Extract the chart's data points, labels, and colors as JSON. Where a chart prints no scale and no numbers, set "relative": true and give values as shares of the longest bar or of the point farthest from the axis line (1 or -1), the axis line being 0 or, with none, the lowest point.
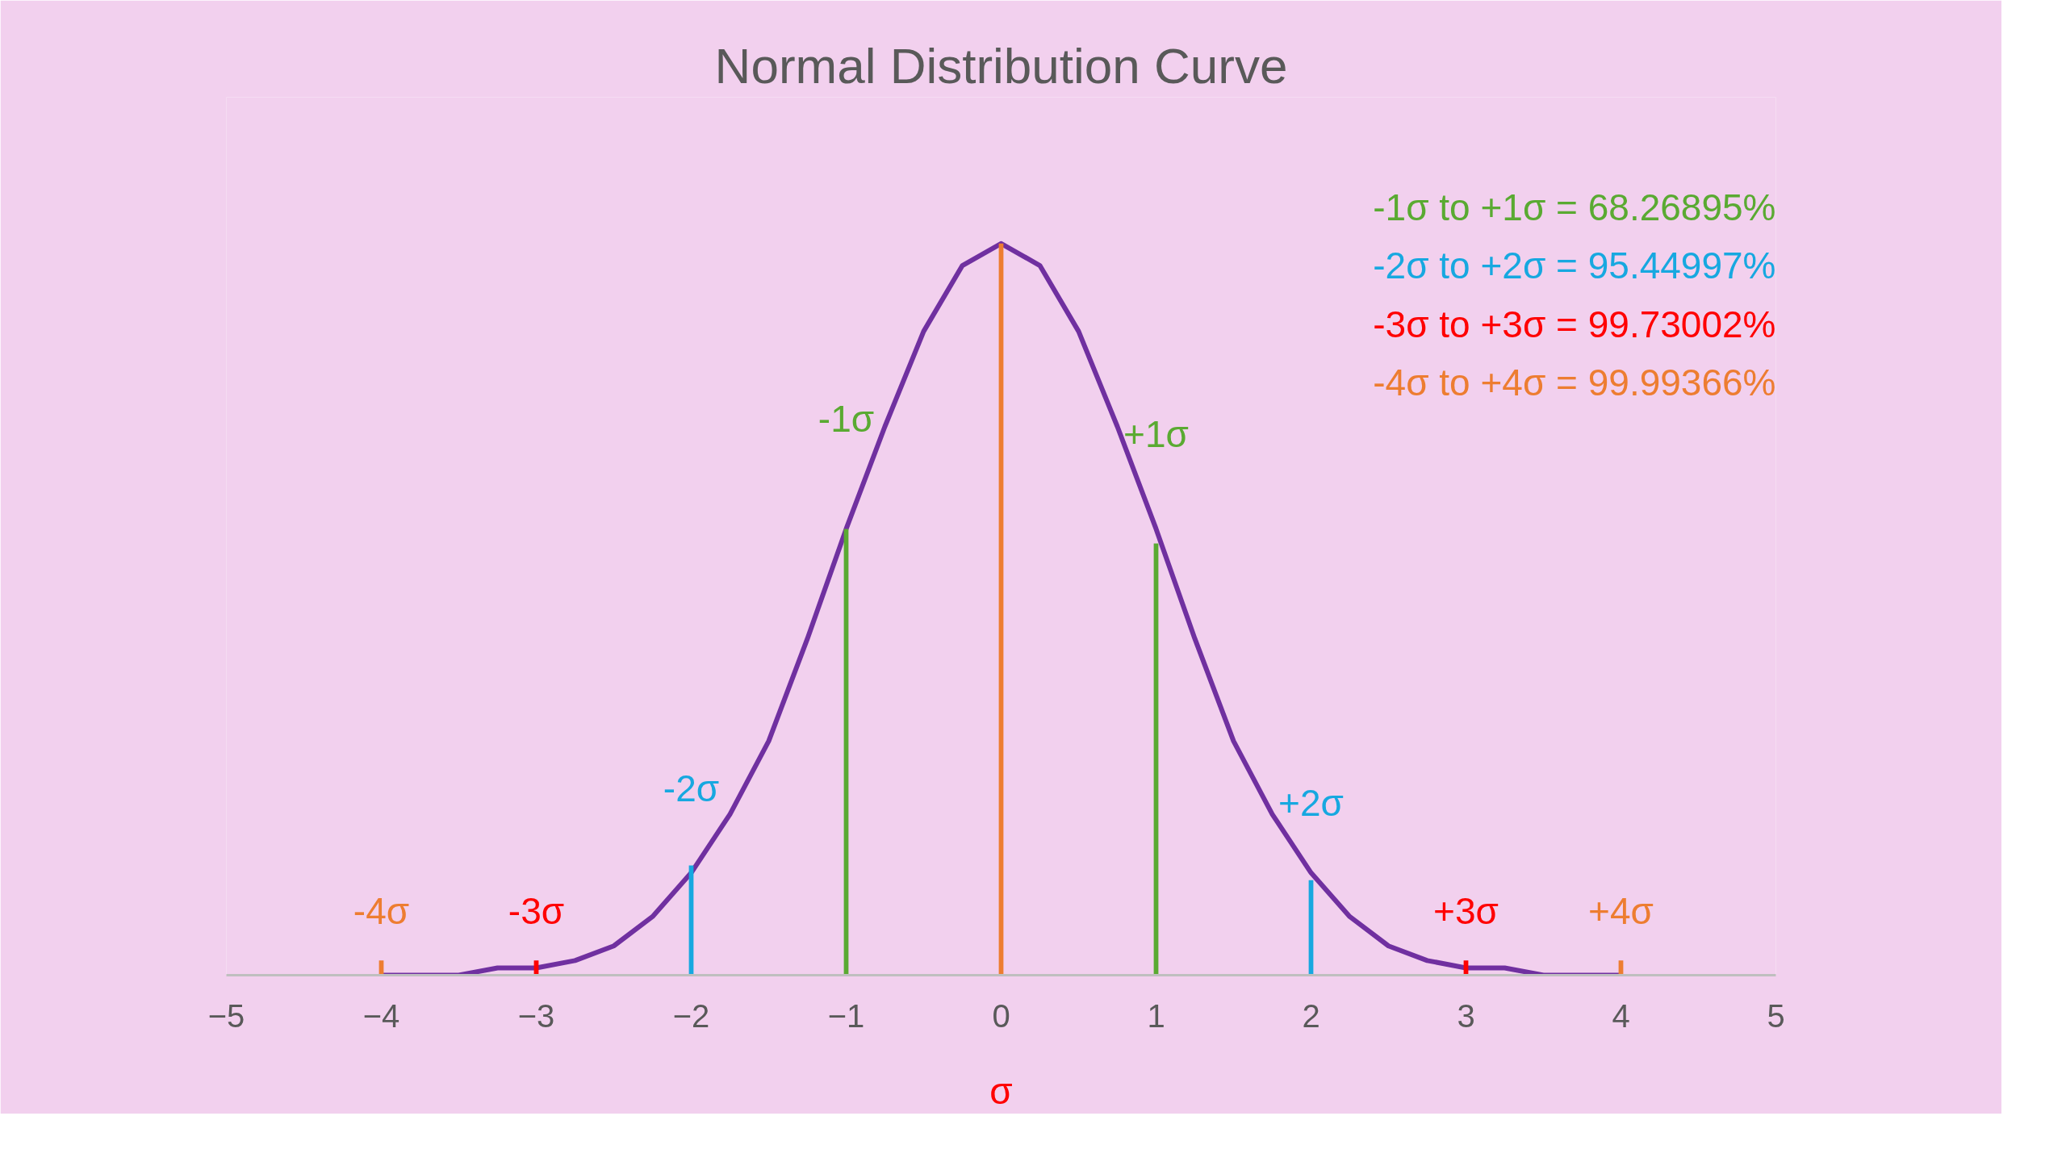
{
  "chart_data": {
    "type": "line",
    "title": "Normal Distribution Curve",
    "xlabel": "σ",
    "relative": true,
    "xlim": [
      -5,
      5
    ],
    "xticks": [
      -5,
      -4,
      -3,
      -2,
      -1,
      0,
      1,
      2,
      3,
      4,
      5
    ],
    "grid": false,
    "tick_labels": "x",
    "x": [
      -4,
      -3.75,
      -3.5,
      -3.25,
      -3,
      -2.75,
      -2.5,
      -2.25,
      -2,
      -1.75,
      -1.5,
      -1.25,
      -1,
      -0.75,
      -0.5,
      -0.25,
      0,
      0.25,
      0.5,
      0.75,
      1,
      1.25,
      1.5,
      1.75,
      2,
      2.25,
      2.5,
      2.75,
      3,
      3.25,
      3.5,
      3.75,
      4
    ],
    "series": [
      {
        "color": "#7030a0",
        "values": [
          0,
          0,
          0,
          0.01,
          0.01,
          0.02,
          0.04,
          0.08,
          0.14,
          0.22,
          0.32,
          0.46,
          0.61,
          0.75,
          0.88,
          0.97,
          1,
          0.97,
          0.88,
          0.75,
          0.61,
          0.46,
          0.32,
          0.22,
          0.14,
          0.08,
          0.04,
          0.02,
          0.01,
          0.01,
          0,
          0,
          0
        ]
      },
      {
        "type": "bar",
        "color": "#5aaa32",
        "x": [
          -1,
          1
        ],
        "values": [
          0.61,
          0.59
        ]
      },
      {
        "type": "bar",
        "color": "#17a8e0",
        "x": [
          -2,
          2
        ],
        "values": [
          0.15,
          0.13
        ]
      },
      {
        "type": "bar",
        "color": "#ff0000",
        "x": [
          -3,
          3
        ],
        "values": [
          0.02,
          0.02
        ]
      },
      {
        "type": "bar",
        "color": "#ed7d31",
        "x": [
          -4,
          4
        ],
        "values": [
          0.02,
          0.02
        ]
      },
      {
        "type": "bar",
        "color": "#ed7d31",
        "x": [
          0
        ],
        "values": [
          1
        ]
      }
    ],
    "annotations": [
      "-1σ to +1σ = 68.26895%",
      "-2σ to +2σ = 95.44997%",
      "-3σ to +3σ = 99.73002%",
      "-4σ to +4σ = 99.99366%",
      {
        "text": "-1σ",
        "x": -1,
        "y": 0.61
      },
      {
        "text": "+1σ",
        "x": 1,
        "y": 0.59
      },
      {
        "text": "-2σ",
        "x": -2,
        "y": 0.15
      },
      {
        "text": "+2σ",
        "x": 2,
        "y": 0.13
      },
      {
        "text": "-3σ",
        "x": -3,
        "y": 0.02
      },
      {
        "text": "+3σ",
        "x": 3,
        "y": 0.02
      },
      {
        "text": "-4σ",
        "x": -4,
        "y": 0.02
      },
      {
        "text": "+4σ",
        "x": 4,
        "y": 0.02
      }
    ]
  }
}
